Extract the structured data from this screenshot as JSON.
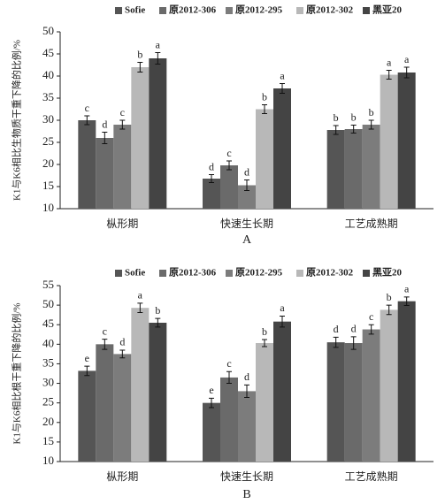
{
  "chart_data": [
    {
      "type": "bar",
      "title": "A",
      "y_label": "K1与K6相比生物质干重下降的比例/%",
      "categories": [
        "枞形期",
        "快速生长期",
        "工艺成熟期"
      ],
      "ylim": [
        10,
        50
      ],
      "yticks": [
        10,
        15,
        20,
        25,
        30,
        35,
        40,
        45,
        50
      ],
      "series": [
        {
          "name": "Sofie",
          "color": "#555555",
          "values": [
            30,
            16.8,
            27.8
          ],
          "errors": [
            1,
            0.9,
            1
          ],
          "letters": [
            "c",
            "d",
            "b"
          ]
        },
        {
          "name": "原2012-306",
          "color": "#6a6a6a",
          "values": [
            26,
            19.8,
            28
          ],
          "errors": [
            1.3,
            1,
            0.9
          ],
          "letters": [
            "d",
            "c",
            "b"
          ]
        },
        {
          "name": "原2012-295",
          "color": "#7c7c7c",
          "values": [
            29,
            15.3,
            29
          ],
          "errors": [
            1,
            1.2,
            1
          ],
          "letters": [
            "c",
            "d",
            "b"
          ]
        },
        {
          "name": "原2012-302",
          "color": "#b8b8b8",
          "values": [
            42,
            32.5,
            40.3
          ],
          "errors": [
            1.1,
            1,
            1
          ],
          "letters": [
            "b",
            "b",
            "a"
          ]
        },
        {
          "name": "黑亚20",
          "color": "#444444",
          "values": [
            44,
            37.2,
            40.8
          ],
          "errors": [
            1.3,
            1.1,
            1.2
          ],
          "letters": [
            "a",
            "a",
            "a"
          ]
        }
      ]
    },
    {
      "type": "bar",
      "title": "B",
      "y_label": "K1与K6相比根干重下降的比例/%",
      "categories": [
        "枞形期",
        "快速生长期",
        "工艺成熟期"
      ],
      "ylim": [
        10,
        55
      ],
      "yticks": [
        10,
        15,
        20,
        25,
        30,
        35,
        40,
        45,
        50,
        55
      ],
      "series": [
        {
          "name": "Sofie",
          "color": "#555555",
          "values": [
            33.2,
            25,
            40.5
          ],
          "errors": [
            1.2,
            1.2,
            1.3
          ],
          "letters": [
            "e",
            "e",
            "d"
          ]
        },
        {
          "name": "原2012-306",
          "color": "#6a6a6a",
          "values": [
            40,
            31.5,
            40.3
          ],
          "errors": [
            1.3,
            1.5,
            1.6
          ],
          "letters": [
            "c",
            "c",
            "d"
          ]
        },
        {
          "name": "原2012-295",
          "color": "#7c7c7c",
          "values": [
            37.5,
            28,
            43.8
          ],
          "errors": [
            1,
            1.6,
            1.2
          ],
          "letters": [
            "d",
            "d",
            "c"
          ]
        },
        {
          "name": "原2012-302",
          "color": "#b8b8b8",
          "values": [
            49.3,
            40.3,
            48.8
          ],
          "errors": [
            1.2,
            0.9,
            1.2
          ],
          "letters": [
            "a",
            "b",
            "b"
          ]
        },
        {
          "name": "黑亚20",
          "color": "#444444",
          "values": [
            45.5,
            45.8,
            51
          ],
          "errors": [
            1.1,
            1.4,
            1.1
          ],
          "letters": [
            "b",
            "a",
            "a"
          ]
        }
      ]
    }
  ]
}
